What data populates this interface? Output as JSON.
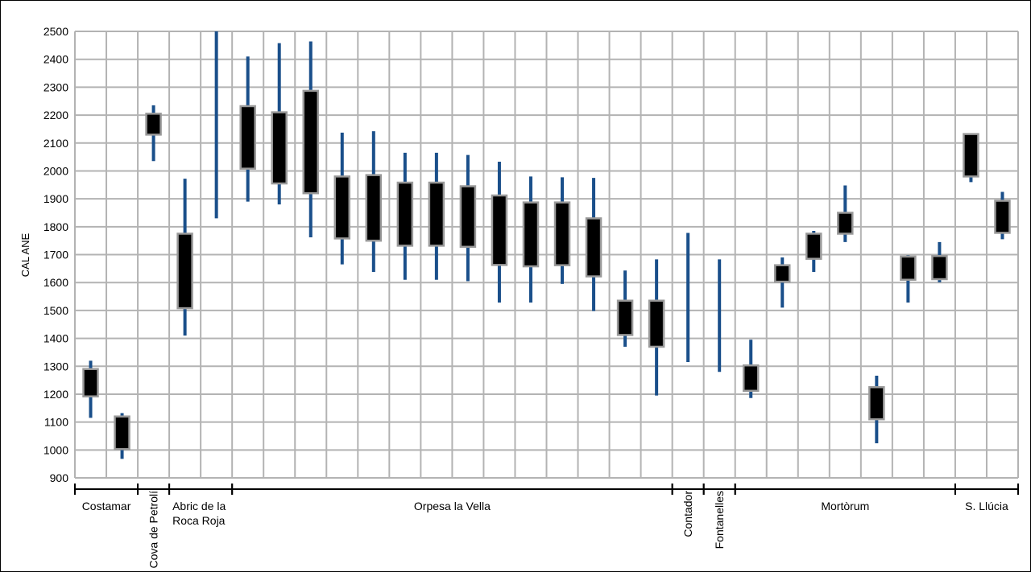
{
  "chart_data": {
    "type": "candlestick",
    "ylabel": "CAL ANE",
    "ylim": [
      900,
      2500
    ],
    "yticks": [
      900,
      1000,
      1100,
      1200,
      1300,
      1400,
      1500,
      1600,
      1700,
      1800,
      1900,
      2000,
      2100,
      2200,
      2300,
      2400,
      2500
    ],
    "grid": true,
    "colors": {
      "whisker": "#1a4f8a",
      "box_fill": "#000000",
      "box_edge": "#999999",
      "grid": "#b3b3b3"
    },
    "groups": [
      {
        "label": "Costamar",
        "start": 0,
        "end": 2,
        "vertical": false
      },
      {
        "label": "Cova de Petrolí",
        "start": 2,
        "end": 3,
        "vertical": true
      },
      {
        "label": "Abric de la Roca Roja",
        "start": 3,
        "end": 5,
        "vertical": false
      },
      {
        "label": "Orpesa la Vella",
        "start": 5,
        "end": 19,
        "vertical": false
      },
      {
        "label": "Contador",
        "start": 19,
        "end": 20,
        "vertical": true
      },
      {
        "label": "Fontanelles",
        "start": 20,
        "end": 21,
        "vertical": true
      },
      {
        "label": "Mortòrum",
        "start": 21,
        "end": 28,
        "vertical": false
      },
      {
        "label": "S. Llúcia",
        "start": 28,
        "end": 30,
        "vertical": false
      }
    ],
    "samples": [
      {
        "low": 1115,
        "q1": 1192,
        "q3": 1290,
        "high": 1320
      },
      {
        "low": 968,
        "q1": 1003,
        "q3": 1120,
        "high": 1132
      },
      {
        "low": 2035,
        "q1": 2130,
        "q3": 2205,
        "high": 2235
      },
      {
        "low": 1410,
        "q1": 1508,
        "q3": 1775,
        "high": 1972
      },
      {
        "low": 1830,
        "q1": null,
        "q3": null,
        "high": 2500
      },
      {
        "low": 1890,
        "q1": 2008,
        "q3": 2232,
        "high": 2410
      },
      {
        "low": 1880,
        "q1": 1955,
        "q3": 2210,
        "high": 2458
      },
      {
        "low": 1762,
        "q1": 1920,
        "q3": 2287,
        "high": 2464
      },
      {
        "low": 1665,
        "q1": 1758,
        "q3": 1980,
        "high": 2137
      },
      {
        "low": 1638,
        "q1": 1750,
        "q3": 1985,
        "high": 2142
      },
      {
        "low": 1610,
        "q1": 1732,
        "q3": 1958,
        "high": 2065
      },
      {
        "low": 1610,
        "q1": 1732,
        "q3": 1958,
        "high": 2065
      },
      {
        "low": 1605,
        "q1": 1728,
        "q3": 1945,
        "high": 2057
      },
      {
        "low": 1528,
        "q1": 1663,
        "q3": 1912,
        "high": 2033
      },
      {
        "low": 1528,
        "q1": 1658,
        "q3": 1887,
        "high": 1980
      },
      {
        "low": 1595,
        "q1": 1662,
        "q3": 1887,
        "high": 1977
      },
      {
        "low": 1498,
        "q1": 1622,
        "q3": 1830,
        "high": 1975
      },
      {
        "low": 1370,
        "q1": 1412,
        "q3": 1535,
        "high": 1643
      },
      {
        "low": 1195,
        "q1": 1370,
        "q3": 1535,
        "high": 1683
      },
      {
        "low": 1315,
        "q1": null,
        "q3": null,
        "high": 1778
      },
      {
        "low": 1280,
        "q1": null,
        "q3": null,
        "high": 1683
      },
      {
        "low": 1186,
        "q1": 1212,
        "q3": 1303,
        "high": 1395
      },
      {
        "low": 1510,
        "q1": 1603,
        "q3": 1662,
        "high": 1690
      },
      {
        "low": 1638,
        "q1": 1685,
        "q3": 1775,
        "high": 1785
      },
      {
        "low": 1745,
        "q1": 1775,
        "q3": 1850,
        "high": 1948
      },
      {
        "low": 1024,
        "q1": 1110,
        "q3": 1225,
        "high": 1266
      },
      {
        "low": 1528,
        "q1": 1610,
        "q3": 1693,
        "high": 1698
      },
      {
        "low": 1601,
        "q1": 1612,
        "q3": 1695,
        "high": 1745
      },
      {
        "low": 1960,
        "q1": 1980,
        "q3": 2132,
        "high": 2135
      },
      {
        "low": 1755,
        "q1": 1778,
        "q3": 1893,
        "high": 1925
      }
    ]
  }
}
